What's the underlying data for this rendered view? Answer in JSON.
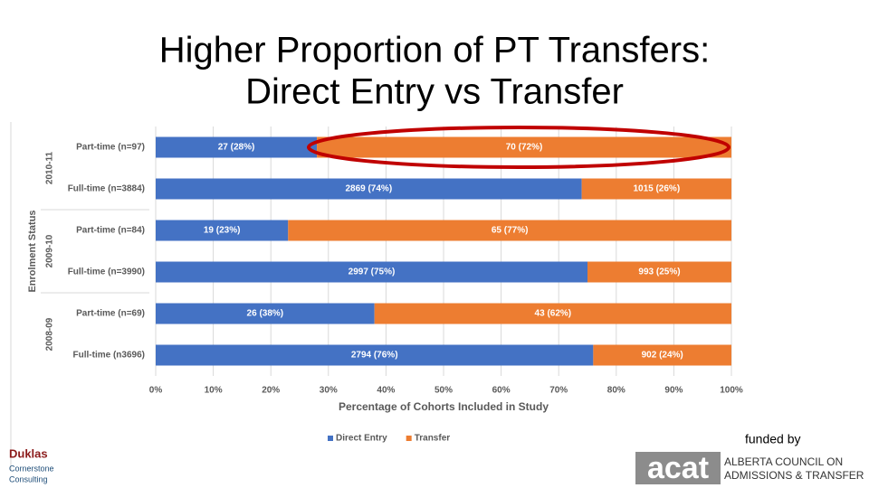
{
  "chart_data": {
    "type": "stacked-barh",
    "title": [
      "Higher Proportion of PT Transfers:",
      "Direct Entry vs Transfer"
    ],
    "categories": [
      "Part-time (n=97)",
      "Full-time (n=3884)",
      "Part-time (n=84)",
      "Full-time (n=3990)",
      "Part-time (n=69)",
      "Full-time (n3696)"
    ],
    "groups": [
      "2010-11",
      "2009-10",
      "2008-09"
    ],
    "series": [
      {
        "name": "Direct Entry",
        "color": "#4472c4",
        "values": [
          28,
          74,
          23,
          75,
          38,
          76
        ],
        "value_labels": [
          "27 (28%)",
          "2869 (74%)",
          "19 (23%)",
          "2997 (75%)",
          "26 (38%)",
          "2794 (76%)"
        ]
      },
      {
        "name": "Transfer",
        "color": "#ed7d31",
        "values": [
          72,
          26,
          77,
          25,
          62,
          24
        ],
        "value_labels": [
          "70 (72%)",
          "1015 (26%)",
          "65 (77%)",
          "993 (25%)",
          "43 (62%)",
          "902 (24%)"
        ]
      }
    ],
    "xlabel": "Percentage of Cohorts Included in Study",
    "ylabel": "Enrolment Status",
    "xlim": [
      0,
      100
    ],
    "xticks": [
      {
        "value": 0,
        "label": "0%"
      },
      {
        "value": 10,
        "label": "10%"
      },
      {
        "value": 20,
        "label": "20%"
      },
      {
        "value": 30,
        "label": "30%"
      },
      {
        "value": 40,
        "label": "40%"
      },
      {
        "value": 50,
        "label": "50%"
      },
      {
        "value": 60,
        "label": "60%"
      },
      {
        "value": 70,
        "label": "70%"
      },
      {
        "value": 80,
        "label": "80%"
      },
      {
        "value": 90,
        "label": "90%"
      },
      {
        "value": 100,
        "label": "100%"
      }
    ],
    "grid": true,
    "legend": "bottom"
  },
  "footer": {
    "left_logo": [
      "Duklas",
      "Cornerstone",
      "Consulting"
    ],
    "funded_by": "funded by",
    "right_logo": {
      "mark": "acat",
      "lines": [
        "ALBERTA COUNCIL ON",
        "ADMISSIONS & TRANSFER"
      ]
    }
  }
}
